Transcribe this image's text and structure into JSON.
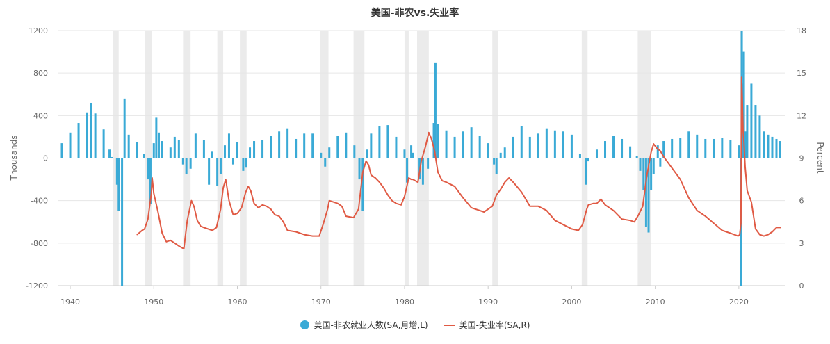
{
  "colors": {
    "bars": "#3aaad6",
    "line": "#e05a44",
    "recession": "#ebebeb",
    "grid": "#e6e6e6",
    "axis_text": "#666666"
  },
  "chart_data": {
    "type": "bar",
    "title": "美国-非农vs.失业率",
    "ylabel": "Thousands",
    "ylabel_right": "Percent",
    "xlim": [
      1938.5,
      2025.5
    ],
    "x_ticks": [
      1940,
      1950,
      1960,
      1970,
      1980,
      1990,
      2000,
      2010,
      2020
    ],
    "x_tick_labels": [
      "1940",
      "1950",
      "1960",
      "1970",
      "1980",
      "1990",
      "2000",
      "2010",
      "2020"
    ],
    "ylim": [
      -1200,
      1200
    ],
    "y_ticks": [
      -1200,
      -800,
      -400,
      0,
      400,
      800,
      1200
    ],
    "y_tick_labels": [
      "-1200",
      "-800",
      "-400",
      "0",
      "400",
      "800",
      "1200"
    ],
    "y2lim": [
      0,
      18
    ],
    "y2_ticks": [
      0,
      3,
      6,
      9,
      12,
      15,
      18
    ],
    "y2_tick_labels": [
      "0",
      "3",
      "6",
      "9",
      "12",
      "15",
      "18"
    ],
    "grid": true,
    "legend_position": "bottom",
    "recessions": [
      [
        1945.1,
        1945.8
      ],
      [
        1948.9,
        1949.8
      ],
      [
        1953.5,
        1954.4
      ],
      [
        1957.6,
        1958.3
      ],
      [
        1960.3,
        1961.1
      ],
      [
        1969.9,
        1970.9
      ],
      [
        1973.9,
        1975.2
      ],
      [
        1980.0,
        1980.5
      ],
      [
        1981.5,
        1982.9
      ],
      [
        1990.5,
        1991.2
      ],
      [
        2001.2,
        2001.9
      ],
      [
        2007.9,
        2009.5
      ],
      [
        2020.1,
        2020.4
      ]
    ],
    "series": [
      {
        "name": "美国-非农就业人数(SA,月增,L)",
        "kind": "bar",
        "axis": "left",
        "x": [
          1939.0,
          1940.0,
          1941.0,
          1942.0,
          1942.5,
          1943.0,
          1944.0,
          1944.7,
          1945.0,
          1945.6,
          1945.8,
          1946.2,
          1946.5,
          1947.0,
          1948.0,
          1948.8,
          1949.3,
          1949.6,
          1950.0,
          1950.3,
          1950.6,
          1951.0,
          1952.0,
          1952.5,
          1953.0,
          1953.5,
          1953.9,
          1954.4,
          1955.0,
          1956.0,
          1956.6,
          1957.0,
          1957.6,
          1958.0,
          1958.5,
          1959.0,
          1959.5,
          1960.0,
          1960.7,
          1961.0,
          1961.5,
          1962.0,
          1963.0,
          1964.0,
          1965.0,
          1966.0,
          1967.0,
          1968.0,
          1969.0,
          1970.0,
          1970.5,
          1971.0,
          1972.0,
          1973.0,
          1974.0,
          1974.6,
          1975.0,
          1975.5,
          1976.0,
          1977.0,
          1978.0,
          1979.0,
          1980.0,
          1980.3,
          1980.8,
          1981.0,
          1981.8,
          1982.2,
          1982.8,
          1983.5,
          1983.7,
          1984.0,
          1985.0,
          1986.0,
          1987.0,
          1988.0,
          1989.0,
          1990.0,
          1990.7,
          1991.0,
          1991.5,
          1992.0,
          1993.0,
          1994.0,
          1995.0,
          1996.0,
          1997.0,
          1998.0,
          1999.0,
          2000.0,
          2001.0,
          2001.7,
          2002.0,
          2003.0,
          2004.0,
          2005.0,
          2006.0,
          2007.0,
          2007.8,
          2008.2,
          2008.6,
          2008.9,
          2009.2,
          2009.5,
          2009.8,
          2010.3,
          2010.6,
          2011.0,
          2012.0,
          2013.0,
          2014.0,
          2015.0,
          2016.0,
          2017.0,
          2018.0,
          2019.0,
          2020.0,
          2020.25,
          2020.35,
          2020.45,
          2020.6,
          2020.8,
          2021.0,
          2021.5,
          2022.0,
          2022.5,
          2023.0,
          2023.5,
          2024.0,
          2024.5,
          2024.9
        ],
        "values": [
          140,
          240,
          330,
          430,
          520,
          420,
          270,
          80,
          10,
          -250,
          -500,
          -1200,
          560,
          220,
          150,
          40,
          -200,
          -430,
          140,
          380,
          240,
          160,
          100,
          200,
          170,
          -60,
          -150,
          -100,
          230,
          170,
          -250,
          60,
          -260,
          -150,
          120,
          230,
          -60,
          150,
          -120,
          -90,
          100,
          160,
          170,
          210,
          250,
          280,
          180,
          230,
          230,
          50,
          -80,
          100,
          210,
          240,
          120,
          -200,
          -500,
          80,
          230,
          300,
          310,
          200,
          80,
          -230,
          120,
          50,
          -200,
          -250,
          -100,
          330,
          900,
          320,
          260,
          200,
          250,
          290,
          210,
          140,
          -60,
          -150,
          50,
          100,
          200,
          300,
          200,
          230,
          280,
          260,
          250,
          220,
          40,
          -250,
          -30,
          80,
          160,
          210,
          180,
          110,
          20,
          -120,
          -300,
          -650,
          -700,
          -300,
          -150,
          120,
          -80,
          160,
          180,
          190,
          250,
          220,
          180,
          180,
          190,
          170,
          120,
          -1200,
          1200,
          700,
          1000,
          250,
          500,
          700,
          500,
          400,
          250,
          220,
          200,
          180,
          160
        ]
      },
      {
        "name": "美国-失业率(SA,R)",
        "kind": "line",
        "axis": "right",
        "x": [
          1948.0,
          1948.6,
          1948.9,
          1949.3,
          1949.7,
          1949.8,
          1950.0,
          1950.5,
          1951.0,
          1951.5,
          1952.0,
          1952.5,
          1953.0,
          1953.6,
          1954.0,
          1954.5,
          1954.8,
          1955.2,
          1955.6,
          1956.0,
          1956.5,
          1957.0,
          1957.5,
          1958.0,
          1958.3,
          1958.6,
          1959.0,
          1959.5,
          1960.0,
          1960.5,
          1961.0,
          1961.3,
          1961.6,
          1962.0,
          1962.5,
          1963.0,
          1963.5,
          1964.0,
          1964.5,
          1965.0,
          1965.5,
          1966.0,
          1967.0,
          1968.0,
          1969.0,
          1969.8,
          1970.3,
          1970.8,
          1971.0,
          1972.0,
          1972.5,
          1973.0,
          1973.9,
          1974.5,
          1975.0,
          1975.4,
          1975.7,
          1976.0,
          1976.5,
          1977.0,
          1977.5,
          1978.0,
          1978.5,
          1979.0,
          1979.6,
          1980.0,
          1980.5,
          1980.8,
          1981.0,
          1981.6,
          1982.0,
          1982.5,
          1982.9,
          1983.2,
          1983.6,
          1984.0,
          1984.5,
          1985.0,
          1986.0,
          1987.0,
          1988.0,
          1989.0,
          1989.5,
          1990.0,
          1990.5,
          1991.0,
          1991.5,
          1992.0,
          1992.5,
          1993.0,
          1994.0,
          1995.0,
          1996.0,
          1997.0,
          1998.0,
          1999.0,
          2000.0,
          2000.8,
          2001.3,
          2001.8,
          2002.0,
          2002.6,
          2003.0,
          2003.5,
          2004.0,
          2005.0,
          2006.0,
          2007.0,
          2007.5,
          2008.0,
          2008.5,
          2009.0,
          2009.5,
          2009.8,
          2010.2,
          2010.6,
          2011.0,
          2012.0,
          2013.0,
          2014.0,
          2015.0,
          2016.0,
          2017.0,
          2018.0,
          2019.0,
          2019.9,
          2020.1,
          2020.25,
          2020.33,
          2020.4,
          2020.5,
          2020.6,
          2020.75,
          2021.0,
          2021.5,
          2022.0,
          2022.5,
          2023.0,
          2023.5,
          2024.0,
          2024.5,
          2025.0
        ],
        "values": [
          3.6,
          3.9,
          4.0,
          4.7,
          6.5,
          7.6,
          6.5,
          5.2,
          3.7,
          3.1,
          3.2,
          3.0,
          2.8,
          2.6,
          4.6,
          6.0,
          5.6,
          4.6,
          4.2,
          4.1,
          4.0,
          3.9,
          4.1,
          5.4,
          6.9,
          7.5,
          6.0,
          5.0,
          5.1,
          5.5,
          6.6,
          7.0,
          6.7,
          5.8,
          5.5,
          5.7,
          5.6,
          5.4,
          5.0,
          4.9,
          4.5,
          3.9,
          3.8,
          3.6,
          3.5,
          3.5,
          4.4,
          5.4,
          6.0,
          5.8,
          5.6,
          4.9,
          4.8,
          5.4,
          8.0,
          8.8,
          8.5,
          7.8,
          7.6,
          7.3,
          6.9,
          6.4,
          6.0,
          5.8,
          5.7,
          6.3,
          7.6,
          7.5,
          7.5,
          7.3,
          8.8,
          9.8,
          10.8,
          10.4,
          9.5,
          8.0,
          7.4,
          7.3,
          7.0,
          6.2,
          5.5,
          5.3,
          5.2,
          5.4,
          5.6,
          6.4,
          6.8,
          7.3,
          7.6,
          7.3,
          6.6,
          5.6,
          5.6,
          5.3,
          4.6,
          4.3,
          4.0,
          3.9,
          4.3,
          5.4,
          5.7,
          5.8,
          5.8,
          6.1,
          5.7,
          5.3,
          4.7,
          4.6,
          4.5,
          5.0,
          5.6,
          7.8,
          9.4,
          10.0,
          9.7,
          9.5,
          9.1,
          8.3,
          7.5,
          6.2,
          5.3,
          4.9,
          4.4,
          3.9,
          3.7,
          3.5,
          3.6,
          4.4,
          14.7,
          13.3,
          11.0,
          10.2,
          8.4,
          6.7,
          5.9,
          4.0,
          3.6,
          3.5,
          3.6,
          3.8,
          4.1,
          4.1
        ]
      }
    ]
  }
}
